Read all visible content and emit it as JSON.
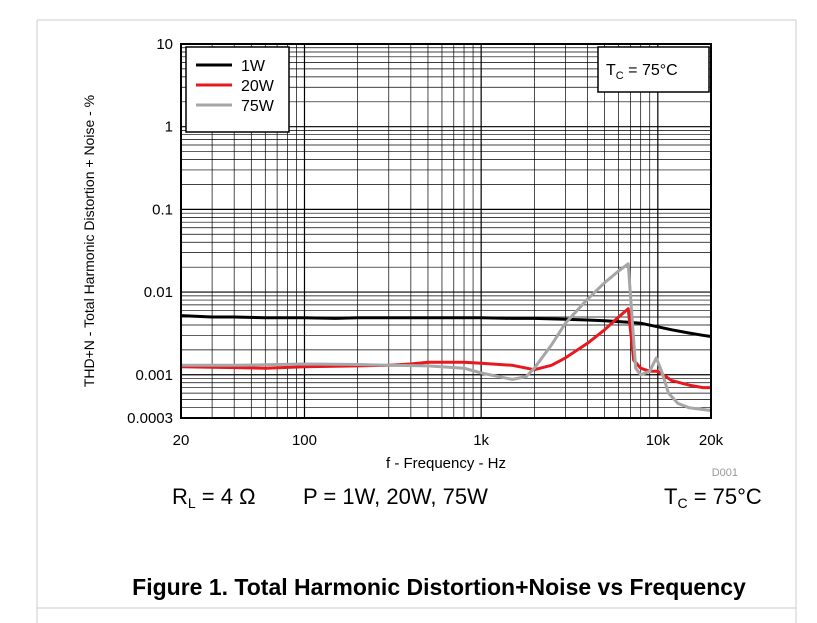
{
  "chart_data": {
    "type": "line",
    "title": "",
    "xlabel": "f - Frequency - Hz",
    "ylabel": "THD+N - Total Harmonic Distortion + Noise - %",
    "x_scale": "log",
    "y_scale": "log",
    "xlim": [
      20,
      20000
    ],
    "ylim": [
      0.0003,
      10
    ],
    "x_ticks": [
      {
        "value": 20,
        "label": "20"
      },
      {
        "value": 100,
        "label": "100"
      },
      {
        "value": 1000,
        "label": "1k"
      },
      {
        "value": 10000,
        "label": "10k"
      },
      {
        "value": 20000,
        "label": "20k"
      }
    ],
    "y_ticks": [
      {
        "value": 10,
        "label": "10"
      },
      {
        "value": 1,
        "label": "1"
      },
      {
        "value": 0.1,
        "label": "0.1"
      },
      {
        "value": 0.01,
        "label": "0.01"
      },
      {
        "value": 0.001,
        "label": "0.001"
      },
      {
        "value": 0.0003,
        "label": "0.0003"
      }
    ],
    "grid": true,
    "legend_position": "top-left",
    "annotation": "T_C = 75°C",
    "annotation_main": "T",
    "annotation_sub": "C",
    "annotation_rest": " = 75°C",
    "figure_id": "D001",
    "series": [
      {
        "name": "1W",
        "color": "#000000",
        "points": [
          [
            20,
            0.0052
          ],
          [
            30,
            0.005
          ],
          [
            40,
            0.005
          ],
          [
            60,
            0.0049
          ],
          [
            100,
            0.0049
          ],
          [
            150,
            0.0048
          ],
          [
            200,
            0.0049
          ],
          [
            300,
            0.0049
          ],
          [
            500,
            0.0049
          ],
          [
            700,
            0.0049
          ],
          [
            1000,
            0.0049
          ],
          [
            1500,
            0.0048
          ],
          [
            2000,
            0.0048
          ],
          [
            3000,
            0.0047
          ],
          [
            4000,
            0.0046
          ],
          [
            5000,
            0.0045
          ],
          [
            6000,
            0.0044
          ],
          [
            7000,
            0.0043
          ],
          [
            8000,
            0.0042
          ],
          [
            10000,
            0.0038
          ],
          [
            12000,
            0.0035
          ],
          [
            15000,
            0.0032
          ],
          [
            18000,
            0.003
          ],
          [
            20000,
            0.0029
          ]
        ]
      },
      {
        "name": "20W",
        "color": "#e8191e",
        "points": [
          [
            20,
            0.00125
          ],
          [
            40,
            0.00122
          ],
          [
            60,
            0.0012
          ],
          [
            100,
            0.00125
          ],
          [
            200,
            0.00128
          ],
          [
            300,
            0.0013
          ],
          [
            400,
            0.00135
          ],
          [
            500,
            0.00142
          ],
          [
            800,
            0.00142
          ],
          [
            1000,
            0.00138
          ],
          [
            1500,
            0.0013
          ],
          [
            2000,
            0.00115
          ],
          [
            2500,
            0.0013
          ],
          [
            3000,
            0.0016
          ],
          [
            4000,
            0.0024
          ],
          [
            5000,
            0.0035
          ],
          [
            6000,
            0.005
          ],
          [
            6800,
            0.0063
          ],
          [
            7300,
            0.0015
          ],
          [
            8000,
            0.0012
          ],
          [
            9000,
            0.0011
          ],
          [
            10000,
            0.0011
          ],
          [
            12000,
            0.00085
          ],
          [
            15000,
            0.00075
          ],
          [
            18000,
            0.0007
          ],
          [
            20000,
            0.0007
          ]
        ]
      },
      {
        "name": "75W",
        "color": "#a6a6a6",
        "points": [
          [
            20,
            0.0013
          ],
          [
            40,
            0.0013
          ],
          [
            60,
            0.00132
          ],
          [
            100,
            0.00135
          ],
          [
            200,
            0.00133
          ],
          [
            300,
            0.0013
          ],
          [
            500,
            0.00128
          ],
          [
            800,
            0.0012
          ],
          [
            1000,
            0.00105
          ],
          [
            1500,
            0.00088
          ],
          [
            1800,
            0.00095
          ],
          [
            2000,
            0.0012
          ],
          [
            2500,
            0.0023
          ],
          [
            3000,
            0.0042
          ],
          [
            4000,
            0.0082
          ],
          [
            5000,
            0.013
          ],
          [
            6000,
            0.018
          ],
          [
            6800,
            0.022
          ],
          [
            7500,
            0.0012
          ],
          [
            8000,
            0.001
          ],
          [
            9000,
            0.0011
          ],
          [
            9800,
            0.0016
          ],
          [
            10500,
            0.0011
          ],
          [
            11500,
            0.0006
          ],
          [
            13000,
            0.00045
          ],
          [
            15000,
            0.0004
          ],
          [
            18000,
            0.00038
          ],
          [
            20000,
            0.00037
          ]
        ]
      }
    ]
  },
  "conditions": {
    "rl_main": "R",
    "rl_sub": "L",
    "rl_rest": " = 4 Ω",
    "power": "P = 1W, 20W, 75W",
    "tc_main": "T",
    "tc_sub": "C",
    "tc_rest": " = 75°C"
  },
  "figure_title": "Figure 1. Total Harmonic Distortion+Noise vs Frequency"
}
